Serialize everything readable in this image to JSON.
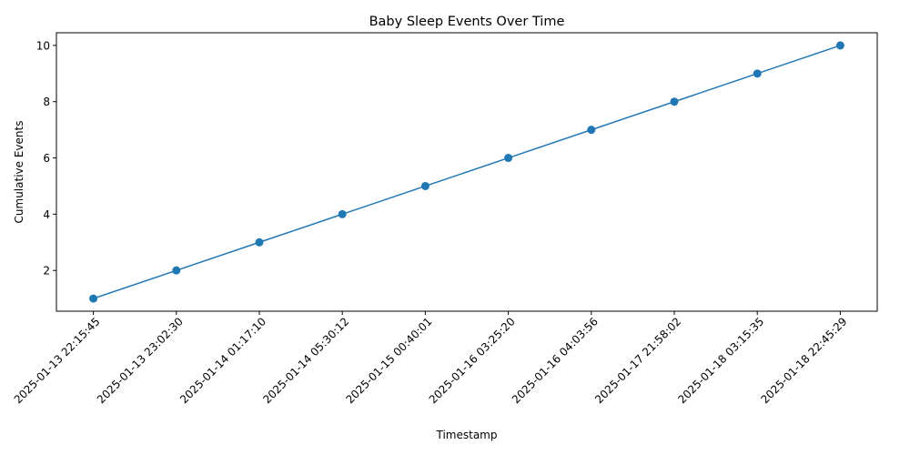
{
  "chart_data": {
    "type": "line",
    "title": "Baby Sleep Events Over Time",
    "xlabel": "Timestamp",
    "ylabel": "Cumulative Events",
    "categories": [
      "2025-01-13 22:15:45",
      "2025-01-13 23:02:30",
      "2025-01-14 01:17:10",
      "2025-01-14 05:30:12",
      "2025-01-15 00:40:01",
      "2025-01-16 03:25:20",
      "2025-01-16 04:03:56",
      "2025-01-17 21:58:02",
      "2025-01-18 03:15:35",
      "2025-01-18 22:45:29"
    ],
    "values": [
      1,
      2,
      3,
      4,
      5,
      6,
      7,
      8,
      9,
      10
    ],
    "ylim": [
      0.55,
      10.45
    ],
    "yticks": [
      2,
      4,
      6,
      8,
      10
    ],
    "grid": false,
    "legend": "none",
    "line_color": "#1f77b4",
    "marker_color": "#1f77b4"
  }
}
